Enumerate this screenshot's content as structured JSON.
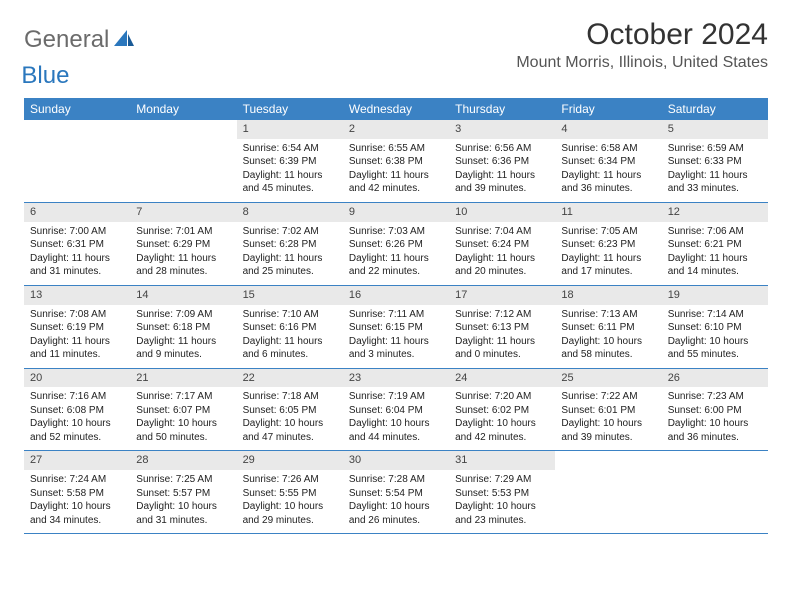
{
  "logo": {
    "general": "General",
    "blue": "Blue"
  },
  "title": "October 2024",
  "location": "Mount Morris, Illinois, United States",
  "colors": {
    "header_bg": "#3b82c4",
    "header_text": "#ffffff",
    "daynum_bg": "#e9e9e9",
    "logo_gray": "#6b6b6b",
    "logo_blue": "#2a77bd",
    "border": "#3b82c4"
  },
  "day_names": [
    "Sunday",
    "Monday",
    "Tuesday",
    "Wednesday",
    "Thursday",
    "Friday",
    "Saturday"
  ],
  "weeks": [
    [
      {
        "n": "",
        "l": []
      },
      {
        "n": "",
        "l": []
      },
      {
        "n": "1",
        "l": [
          "Sunrise: 6:54 AM",
          "Sunset: 6:39 PM",
          "Daylight: 11 hours and 45 minutes."
        ]
      },
      {
        "n": "2",
        "l": [
          "Sunrise: 6:55 AM",
          "Sunset: 6:38 PM",
          "Daylight: 11 hours and 42 minutes."
        ]
      },
      {
        "n": "3",
        "l": [
          "Sunrise: 6:56 AM",
          "Sunset: 6:36 PM",
          "Daylight: 11 hours and 39 minutes."
        ]
      },
      {
        "n": "4",
        "l": [
          "Sunrise: 6:58 AM",
          "Sunset: 6:34 PM",
          "Daylight: 11 hours and 36 minutes."
        ]
      },
      {
        "n": "5",
        "l": [
          "Sunrise: 6:59 AM",
          "Sunset: 6:33 PM",
          "Daylight: 11 hours and 33 minutes."
        ]
      }
    ],
    [
      {
        "n": "6",
        "l": [
          "Sunrise: 7:00 AM",
          "Sunset: 6:31 PM",
          "Daylight: 11 hours and 31 minutes."
        ]
      },
      {
        "n": "7",
        "l": [
          "Sunrise: 7:01 AM",
          "Sunset: 6:29 PM",
          "Daylight: 11 hours and 28 minutes."
        ]
      },
      {
        "n": "8",
        "l": [
          "Sunrise: 7:02 AM",
          "Sunset: 6:28 PM",
          "Daylight: 11 hours and 25 minutes."
        ]
      },
      {
        "n": "9",
        "l": [
          "Sunrise: 7:03 AM",
          "Sunset: 6:26 PM",
          "Daylight: 11 hours and 22 minutes."
        ]
      },
      {
        "n": "10",
        "l": [
          "Sunrise: 7:04 AM",
          "Sunset: 6:24 PM",
          "Daylight: 11 hours and 20 minutes."
        ]
      },
      {
        "n": "11",
        "l": [
          "Sunrise: 7:05 AM",
          "Sunset: 6:23 PM",
          "Daylight: 11 hours and 17 minutes."
        ]
      },
      {
        "n": "12",
        "l": [
          "Sunrise: 7:06 AM",
          "Sunset: 6:21 PM",
          "Daylight: 11 hours and 14 minutes."
        ]
      }
    ],
    [
      {
        "n": "13",
        "l": [
          "Sunrise: 7:08 AM",
          "Sunset: 6:19 PM",
          "Daylight: 11 hours and 11 minutes."
        ]
      },
      {
        "n": "14",
        "l": [
          "Sunrise: 7:09 AM",
          "Sunset: 6:18 PM",
          "Daylight: 11 hours and 9 minutes."
        ]
      },
      {
        "n": "15",
        "l": [
          "Sunrise: 7:10 AM",
          "Sunset: 6:16 PM",
          "Daylight: 11 hours and 6 minutes."
        ]
      },
      {
        "n": "16",
        "l": [
          "Sunrise: 7:11 AM",
          "Sunset: 6:15 PM",
          "Daylight: 11 hours and 3 minutes."
        ]
      },
      {
        "n": "17",
        "l": [
          "Sunrise: 7:12 AM",
          "Sunset: 6:13 PM",
          "Daylight: 11 hours and 0 minutes."
        ]
      },
      {
        "n": "18",
        "l": [
          "Sunrise: 7:13 AM",
          "Sunset: 6:11 PM",
          "Daylight: 10 hours and 58 minutes."
        ]
      },
      {
        "n": "19",
        "l": [
          "Sunrise: 7:14 AM",
          "Sunset: 6:10 PM",
          "Daylight: 10 hours and 55 minutes."
        ]
      }
    ],
    [
      {
        "n": "20",
        "l": [
          "Sunrise: 7:16 AM",
          "Sunset: 6:08 PM",
          "Daylight: 10 hours and 52 minutes."
        ]
      },
      {
        "n": "21",
        "l": [
          "Sunrise: 7:17 AM",
          "Sunset: 6:07 PM",
          "Daylight: 10 hours and 50 minutes."
        ]
      },
      {
        "n": "22",
        "l": [
          "Sunrise: 7:18 AM",
          "Sunset: 6:05 PM",
          "Daylight: 10 hours and 47 minutes."
        ]
      },
      {
        "n": "23",
        "l": [
          "Sunrise: 7:19 AM",
          "Sunset: 6:04 PM",
          "Daylight: 10 hours and 44 minutes."
        ]
      },
      {
        "n": "24",
        "l": [
          "Sunrise: 7:20 AM",
          "Sunset: 6:02 PM",
          "Daylight: 10 hours and 42 minutes."
        ]
      },
      {
        "n": "25",
        "l": [
          "Sunrise: 7:22 AM",
          "Sunset: 6:01 PM",
          "Daylight: 10 hours and 39 minutes."
        ]
      },
      {
        "n": "26",
        "l": [
          "Sunrise: 7:23 AM",
          "Sunset: 6:00 PM",
          "Daylight: 10 hours and 36 minutes."
        ]
      }
    ],
    [
      {
        "n": "27",
        "l": [
          "Sunrise: 7:24 AM",
          "Sunset: 5:58 PM",
          "Daylight: 10 hours and 34 minutes."
        ]
      },
      {
        "n": "28",
        "l": [
          "Sunrise: 7:25 AM",
          "Sunset: 5:57 PM",
          "Daylight: 10 hours and 31 minutes."
        ]
      },
      {
        "n": "29",
        "l": [
          "Sunrise: 7:26 AM",
          "Sunset: 5:55 PM",
          "Daylight: 10 hours and 29 minutes."
        ]
      },
      {
        "n": "30",
        "l": [
          "Sunrise: 7:28 AM",
          "Sunset: 5:54 PM",
          "Daylight: 10 hours and 26 minutes."
        ]
      },
      {
        "n": "31",
        "l": [
          "Sunrise: 7:29 AM",
          "Sunset: 5:53 PM",
          "Daylight: 10 hours and 23 minutes."
        ]
      },
      {
        "n": "",
        "l": []
      },
      {
        "n": "",
        "l": []
      }
    ]
  ]
}
